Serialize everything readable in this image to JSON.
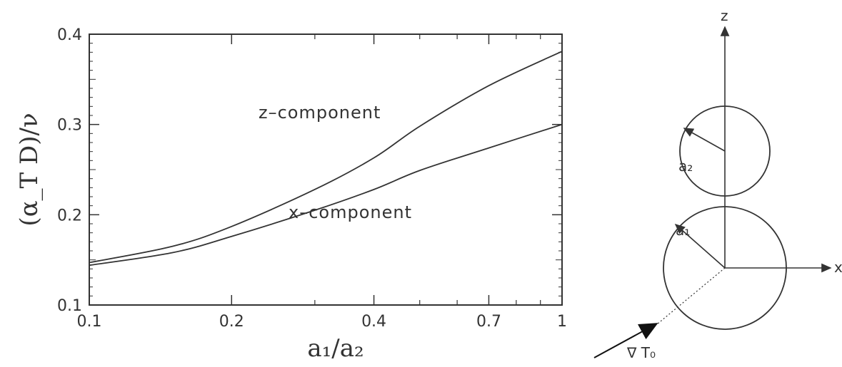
{
  "chart_data": {
    "type": "line",
    "xscale": "log",
    "xlim": [
      0.1,
      1
    ],
    "ylim": [
      0.1,
      0.4
    ],
    "xlabel": "a₁/a₂",
    "ylabel": "(α_T D)/ν",
    "xticks": [
      "0.1",
      "0.2",
      "0.4",
      "0.7",
      "1"
    ],
    "yticks": [
      "0.1",
      "0.2",
      "0.3",
      "0.4"
    ],
    "x": [
      0.1,
      0.15,
      0.2,
      0.3,
      0.4,
      0.5,
      0.7,
      1.0
    ],
    "series": [
      {
        "name": "z–component",
        "values": [
          0.147,
          0.165,
          0.187,
          0.228,
          0.263,
          0.298,
          0.343,
          0.381
        ]
      },
      {
        "name": "x–component",
        "values": [
          0.144,
          0.158,
          0.176,
          0.205,
          0.228,
          0.249,
          0.274,
          0.3
        ]
      }
    ],
    "grid": false,
    "legend": "none"
  },
  "diagram": {
    "axis_z": "z",
    "axis_x": "x",
    "radius_small": "a₂",
    "radius_large": "a₁",
    "gradient_label": "∇ T₀"
  }
}
